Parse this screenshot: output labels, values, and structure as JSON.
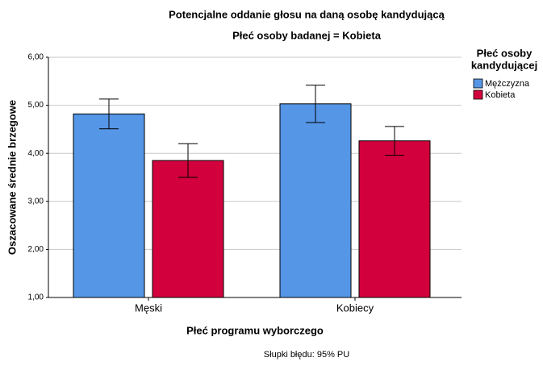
{
  "chart_data": {
    "type": "bar",
    "title": "Potencjalne oddanie głosu na daną osobę kandydującą",
    "subtitle": "Płeć osoby badanej = Kobieta",
    "x_label": "Płeć programu wyborczego",
    "y_label": "Oszacowane średnie brzegowe",
    "footnote": "Słupki błędu: 95% PU",
    "legend_title": [
      "Płeć osoby",
      "kandydującej"
    ],
    "legend_position": "right",
    "categories": [
      "Męski",
      "Kobiecy"
    ],
    "series": [
      {
        "name": "Mężczyzna",
        "color": "#5596e6",
        "values": [
          4.82,
          5.03
        ],
        "errors": [
          0.31,
          0.39
        ]
      },
      {
        "name": "Kobieta",
        "color": "#d2003c",
        "values": [
          3.85,
          4.26
        ],
        "errors": [
          0.35,
          0.3
        ]
      }
    ],
    "ylim": [
      1,
      6
    ],
    "yticks": [
      {
        "value": 1,
        "label": "1,00"
      },
      {
        "value": 2,
        "label": "2,00"
      },
      {
        "value": 3,
        "label": "3,00"
      },
      {
        "value": 4,
        "label": "4,00"
      },
      {
        "value": 5,
        "label": "5,00"
      },
      {
        "value": 6,
        "label": "6,00"
      }
    ],
    "grid": true
  }
}
